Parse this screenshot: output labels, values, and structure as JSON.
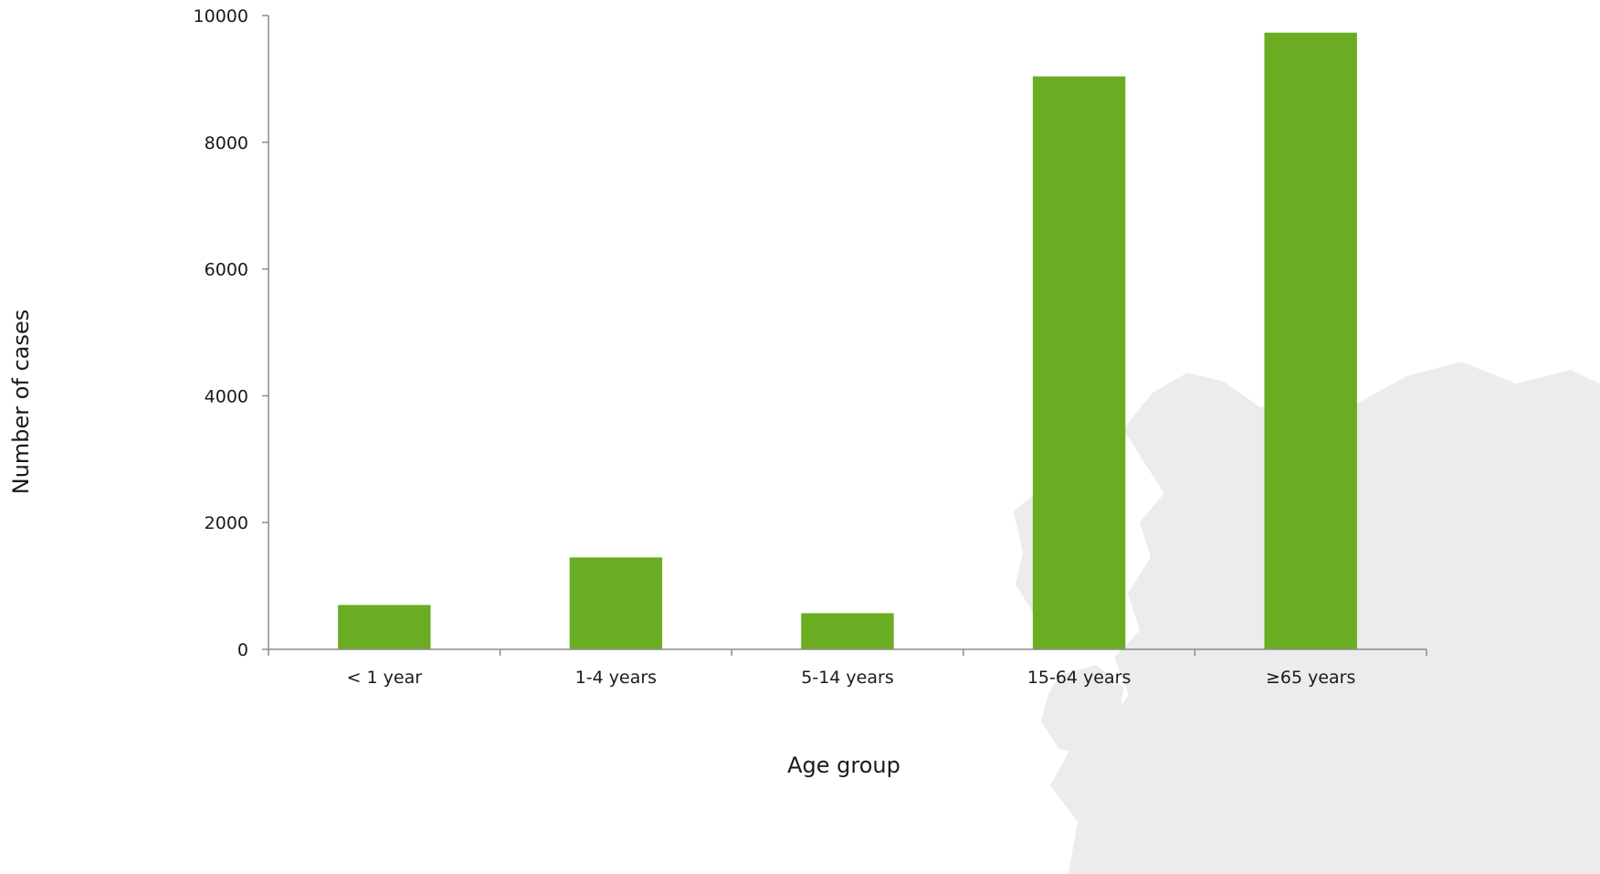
{
  "chart_data": {
    "type": "bar",
    "title": "",
    "xlabel": "Age group",
    "ylabel": "Number of cases",
    "categories": [
      "< 1 year",
      "1-4 years",
      "5-14 years",
      "15-64 years",
      "≥65 years"
    ],
    "values": [
      700,
      1450,
      570,
      9040,
      9730
    ],
    "ylim": [
      0,
      10000
    ],
    "yticks": [
      "0",
      "2000",
      "4000",
      "6000",
      "8000",
      "10000"
    ],
    "grid": false,
    "legend": "none",
    "colors": {
      "bar": "#6aad23",
      "axis": "#8c8c8c",
      "map_background": "#ececec"
    }
  }
}
